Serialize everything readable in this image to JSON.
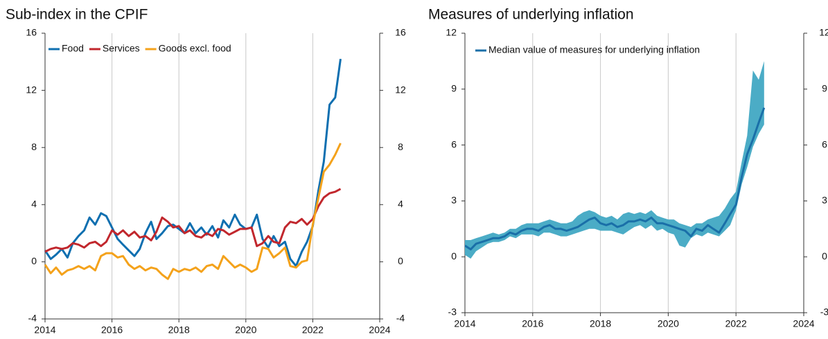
{
  "chart_data": [
    {
      "type": "line",
      "title": "Sub-index in the CPIF",
      "x": [
        2014,
        2014.17,
        2014.33,
        2014.5,
        2014.67,
        2014.83,
        2015,
        2015.17,
        2015.33,
        2015.5,
        2015.67,
        2015.83,
        2016,
        2016.17,
        2016.33,
        2016.5,
        2016.67,
        2016.83,
        2017,
        2017.17,
        2017.33,
        2017.5,
        2017.67,
        2017.83,
        2018,
        2018.17,
        2018.33,
        2018.5,
        2018.67,
        2018.83,
        2019,
        2019.17,
        2019.33,
        2019.5,
        2019.67,
        2019.83,
        2020,
        2020.17,
        2020.33,
        2020.5,
        2020.67,
        2020.83,
        2021,
        2021.17,
        2021.33,
        2021.5,
        2021.67,
        2021.83,
        2022,
        2022.17,
        2022.33,
        2022.5,
        2022.67,
        2022.83
      ],
      "series": [
        {
          "name": "Food",
          "color": "#0f6fb0",
          "values": [
            0.8,
            0.2,
            0.5,
            0.9,
            0.3,
            1.3,
            1.8,
            2.2,
            3.1,
            2.6,
            3.4,
            3.2,
            2.4,
            1.6,
            1.2,
            0.8,
            0.4,
            0.9,
            2.0,
            2.8,
            1.6,
            2.0,
            2.5,
            2.6,
            2.3,
            2.0,
            2.7,
            2.0,
            2.4,
            1.9,
            2.5,
            1.7,
            2.9,
            2.4,
            3.3,
            2.6,
            2.3,
            2.4,
            3.3,
            1.6,
            1.0,
            1.8,
            1.1,
            1.4,
            0.2,
            -0.3,
            0.7,
            1.4,
            2.5,
            5.0,
            7.0,
            11.0,
            11.5,
            14.2
          ]
        },
        {
          "name": "Services",
          "color": "#c1272d",
          "values": [
            0.7,
            0.9,
            1.0,
            0.9,
            1.0,
            1.3,
            1.2,
            1.0,
            1.3,
            1.4,
            1.1,
            1.4,
            2.2,
            1.9,
            2.2,
            1.8,
            2.1,
            1.7,
            1.8,
            1.5,
            2.1,
            3.1,
            2.8,
            2.4,
            2.5,
            2.0,
            2.2,
            1.8,
            1.7,
            2.0,
            1.8,
            2.3,
            2.2,
            1.9,
            2.1,
            2.3,
            2.3,
            2.4,
            1.1,
            1.3,
            1.8,
            1.4,
            1.3,
            2.4,
            2.8,
            2.7,
            3.0,
            2.6,
            3.0,
            3.9,
            4.5,
            4.8,
            4.9,
            5.1
          ]
        },
        {
          "name": "Goods excl. food",
          "color": "#f4a21b",
          "values": [
            -0.2,
            -0.8,
            -0.4,
            -0.9,
            -0.6,
            -0.5,
            -0.3,
            -0.5,
            -0.3,
            -0.6,
            0.4,
            0.6,
            0.6,
            0.3,
            0.4,
            -0.2,
            -0.5,
            -0.3,
            -0.6,
            -0.4,
            -0.5,
            -0.9,
            -1.2,
            -0.5,
            -0.7,
            -0.5,
            -0.6,
            -0.4,
            -0.7,
            -0.3,
            -0.2,
            -0.5,
            0.4,
            0.0,
            -0.4,
            -0.2,
            -0.4,
            -0.7,
            -0.5,
            1.0,
            0.9,
            0.3,
            0.6,
            1.0,
            -0.3,
            -0.4,
            0.0,
            0.1,
            2.6,
            4.5,
            6.3,
            6.8,
            7.5,
            8.3
          ]
        }
      ],
      "xlim": [
        2014,
        2024
      ],
      "xticks": [
        2014,
        2016,
        2018,
        2020,
        2022,
        2024
      ],
      "ylim": [
        -4,
        16
      ],
      "yticks": [
        -4,
        0,
        4,
        8,
        12,
        16
      ],
      "y2lim": [
        -4,
        16
      ],
      "y2ticks": [
        -4,
        0,
        4,
        8,
        12,
        16
      ],
      "grid": "x",
      "legend": "top-left"
    },
    {
      "type": "line",
      "title": "Measures of underlying inflation",
      "x": [
        2014,
        2014.17,
        2014.33,
        2014.5,
        2014.67,
        2014.83,
        2015,
        2015.17,
        2015.33,
        2015.5,
        2015.67,
        2015.83,
        2016,
        2016.17,
        2016.33,
        2016.5,
        2016.67,
        2016.83,
        2017,
        2017.17,
        2017.33,
        2017.5,
        2017.67,
        2017.83,
        2018,
        2018.17,
        2018.33,
        2018.5,
        2018.67,
        2018.83,
        2019,
        2019.17,
        2019.33,
        2019.5,
        2019.67,
        2019.83,
        2020,
        2020.17,
        2020.33,
        2020.5,
        2020.67,
        2020.83,
        2021,
        2021.17,
        2021.33,
        2021.5,
        2021.67,
        2021.83,
        2022,
        2022.17,
        2022.33,
        2022.5,
        2022.67,
        2022.83
      ],
      "series": [
        {
          "name": "Median value of measures for underlying inflation",
          "color": "#1a6fa8",
          "values": [
            0.6,
            0.4,
            0.7,
            0.8,
            0.9,
            1.0,
            1.0,
            1.1,
            1.3,
            1.2,
            1.4,
            1.5,
            1.5,
            1.4,
            1.6,
            1.7,
            1.5,
            1.5,
            1.4,
            1.5,
            1.6,
            1.8,
            2.0,
            2.1,
            1.8,
            1.7,
            1.8,
            1.6,
            1.7,
            1.9,
            1.9,
            2.0,
            1.9,
            2.1,
            1.8,
            1.8,
            1.7,
            1.6,
            1.5,
            1.4,
            1.1,
            1.5,
            1.4,
            1.7,
            1.5,
            1.3,
            1.8,
            2.3,
            2.8,
            4.3,
            5.5,
            6.3,
            7.2,
            8.0
          ]
        }
      ],
      "band": {
        "color": "#4bacc6",
        "lower": [
          0.1,
          -0.1,
          0.3,
          0.5,
          0.7,
          0.8,
          0.8,
          0.9,
          1.1,
          1.0,
          1.2,
          1.2,
          1.2,
          1.1,
          1.3,
          1.3,
          1.2,
          1.1,
          1.1,
          1.2,
          1.3,
          1.4,
          1.5,
          1.5,
          1.4,
          1.4,
          1.4,
          1.3,
          1.2,
          1.4,
          1.6,
          1.7,
          1.5,
          1.7,
          1.4,
          1.5,
          1.3,
          1.2,
          0.6,
          0.5,
          1.0,
          1.2,
          1.1,
          1.3,
          1.2,
          1.1,
          1.4,
          1.7,
          2.5,
          3.9,
          4.8,
          5.9,
          6.6,
          7.1
        ],
        "upper": [
          0.9,
          0.9,
          1.0,
          1.1,
          1.2,
          1.3,
          1.2,
          1.3,
          1.5,
          1.5,
          1.7,
          1.8,
          1.8,
          1.8,
          1.9,
          2.0,
          1.9,
          1.8,
          1.8,
          1.9,
          2.2,
          2.4,
          2.5,
          2.4,
          2.2,
          2.1,
          2.2,
          2.0,
          2.3,
          2.4,
          2.3,
          2.4,
          2.3,
          2.5,
          2.2,
          2.1,
          2.0,
          2.0,
          1.8,
          1.7,
          1.6,
          1.8,
          1.8,
          2.0,
          2.1,
          2.2,
          2.6,
          3.1,
          3.5,
          5.1,
          6.5,
          10.0,
          9.5,
          10.5
        ]
      },
      "xlim": [
        2014,
        2024
      ],
      "xticks": [
        2014,
        2016,
        2018,
        2020,
        2022,
        2024
      ],
      "ylim": [
        -3,
        12
      ],
      "yticks": [
        -3,
        0,
        3,
        6,
        9,
        12
      ],
      "y2lim": [
        -3,
        12
      ],
      "y2ticks": [
        -3,
        0,
        3,
        6,
        9,
        12
      ],
      "grid": "x",
      "legend": "top-left"
    }
  ]
}
